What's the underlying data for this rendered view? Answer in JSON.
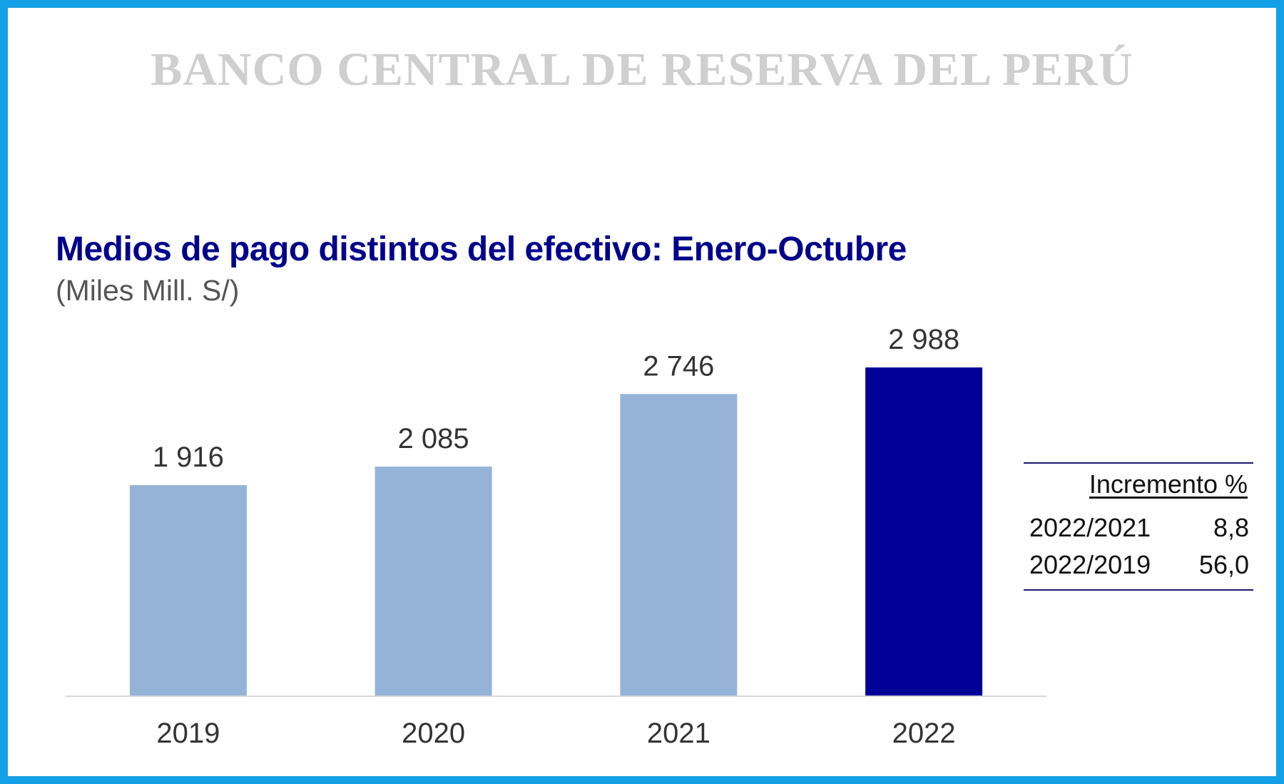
{
  "banner": "BANCO CENTRAL DE RESERVA DEL PERÚ",
  "colors": {
    "border": "#14a0e6",
    "banner_text": "#cfcfcf",
    "title": "#00008b",
    "subtitle": "#555555",
    "bar_light": "#95b3d7",
    "bar_dark": "#000099",
    "label_text": "#333333"
  },
  "chart_data": {
    "type": "bar",
    "title": "Medios de pago distintos del efectivo: Enero-Octubre",
    "subtitle": "(Miles Mill. S/)",
    "categories": [
      "2019",
      "2020",
      "2021",
      "2022"
    ],
    "values": [
      1916,
      2085,
      2746,
      2988
    ],
    "value_labels": [
      "1 916",
      "2 085",
      "2 746",
      "2 988"
    ],
    "highlight_index": 3,
    "ylim": [
      0,
      3450
    ],
    "grid": false,
    "legend": "none"
  },
  "increment_table": {
    "header": "Incremento %",
    "rows": [
      {
        "label": "2022/2021",
        "value": "8,8"
      },
      {
        "label": "2022/2019",
        "value": "56,0"
      }
    ]
  }
}
